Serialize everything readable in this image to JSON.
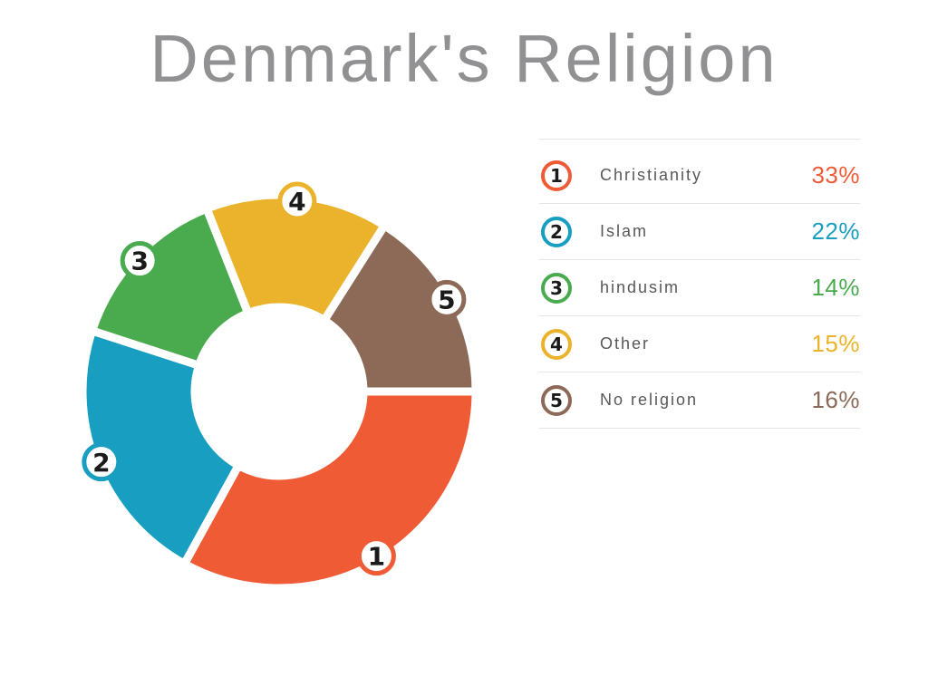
{
  "title": "Denmark's Religion",
  "theme": {
    "background": "#FFFFFF",
    "title_color": "#919194",
    "label_color": "#58585A",
    "divider_color": "#E4E4E4",
    "badge_number_color": "#1A1A1A",
    "slice_gap_color": "#FFFFFF"
  },
  "chart_data": {
    "type": "pie",
    "variant": "donut",
    "title": "Denmark's Religion",
    "unit": "%",
    "start_angle_deg_from_east": 0,
    "direction": "clockwise",
    "legend_position": "right",
    "segments": [
      {
        "number": "1",
        "label": "Christianity",
        "value": 33,
        "display": "33%",
        "color": "#EF5B35"
      },
      {
        "number": "2",
        "label": "Islam",
        "value": 22,
        "display": "22%",
        "color": "#189EC0"
      },
      {
        "number": "3",
        "label": "hindusim",
        "value": 14,
        "display": "14%",
        "color": "#49AB4E"
      },
      {
        "number": "4",
        "label": "Other",
        "value": 15,
        "display": "15%",
        "color": "#EBB32B"
      },
      {
        "number": "5",
        "label": "No religion",
        "value": 16,
        "display": "16%",
        "color": "#8C6A57"
      }
    ]
  }
}
